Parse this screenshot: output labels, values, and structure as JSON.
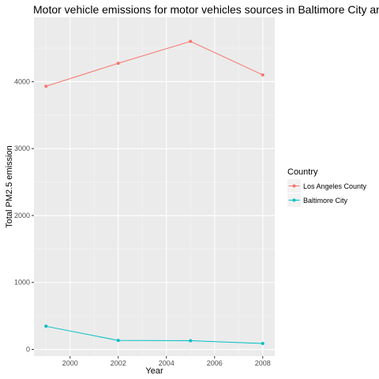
{
  "chart_data": {
    "type": "line",
    "title": "Motor vehicle emissions for motor vehicles sources in Baltimore City and Lo",
    "xlabel": "Year",
    "ylabel": "Total PM2.5 emission",
    "x": [
      1999,
      2002,
      2005,
      2008
    ],
    "xlim": [
      1998.5,
      2008.5
    ],
    "ylim": [
      -100,
      4960
    ],
    "xticks": [
      2000,
      2002,
      2004,
      2006,
      2008
    ],
    "yticks": [
      0,
      1000,
      2000,
      3000,
      4000
    ],
    "grid": true,
    "legend": {
      "title": "Country",
      "position": "right"
    },
    "series": [
      {
        "name": "Los Angeles County",
        "color": "#F8766D",
        "values": [
          3931,
          4274,
          4601,
          4101
        ]
      },
      {
        "name": "Baltimore City",
        "color": "#00BFC4",
        "values": [
          346,
          134,
          130,
          88
        ]
      }
    ]
  }
}
